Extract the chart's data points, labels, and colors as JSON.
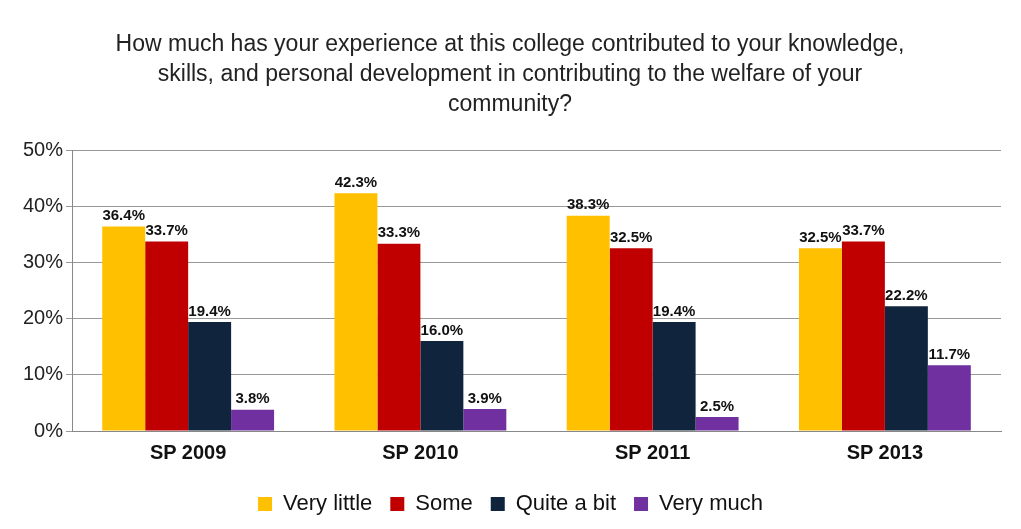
{
  "chart_data": {
    "type": "bar",
    "title": "How much has your experience at this college contributed to your knowledge, skills, and personal development in contributing to the welfare of your community?",
    "categories": [
      "SP 2009",
      "SP 2010",
      "SP 2011",
      "SP 2013"
    ],
    "series": [
      {
        "name": "Very little",
        "color": "#ffc000",
        "values": [
          36.4,
          42.3,
          38.3,
          32.5
        ],
        "value_labels": [
          "36.4%",
          "42.3%",
          "38.3%",
          "32.5%"
        ]
      },
      {
        "name": "Some",
        "color": "#c00000",
        "values": [
          33.7,
          33.3,
          32.5,
          33.7
        ],
        "value_labels": [
          "33.7%",
          "33.3%",
          "32.5%",
          "33.7%"
        ]
      },
      {
        "name": "Quite a bit",
        "color": "#10243e",
        "values": [
          19.4,
          16.0,
          19.4,
          22.2
        ],
        "value_labels": [
          "19.4%",
          "16.0%",
          "19.4%",
          "22.2%"
        ]
      },
      {
        "name": "Very much",
        "color": "#7030a0",
        "values": [
          3.8,
          3.9,
          2.5,
          11.7
        ],
        "value_labels": [
          "3.8%",
          "3.9%",
          "2.5%",
          "11.7%"
        ]
      }
    ],
    "ylim": [
      0,
      50
    ],
    "yticks": [
      {
        "value": 0,
        "label": "0%"
      },
      {
        "value": 10,
        "label": "10%"
      },
      {
        "value": 20,
        "label": "20%"
      },
      {
        "value": 30,
        "label": "30%"
      },
      {
        "value": 40,
        "label": "40%"
      },
      {
        "value": 50,
        "label": "50%"
      }
    ],
    "grid": "y",
    "legend": "bottom"
  }
}
